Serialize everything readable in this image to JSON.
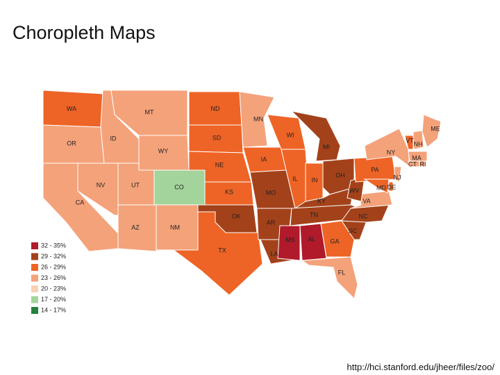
{
  "title": "Choropleth Maps",
  "legend": [
    {
      "label": "32 - 35%",
      "color": "#b01a2a"
    },
    {
      "label": "29 - 32%",
      "color": "#a3421a"
    },
    {
      "label": "26 - 29%",
      "color": "#ee6426"
    },
    {
      "label": "23 - 26%",
      "color": "#f4a27a"
    },
    {
      "label": "20 - 23%",
      "color": "#f9d2b4"
    },
    {
      "label": "17 - 20%",
      "color": "#a3d49b"
    },
    {
      "label": "14 - 17%",
      "color": "#23813f"
    }
  ],
  "states": [
    {
      "label": "WA",
      "bin": 2
    },
    {
      "label": "OR",
      "bin": 3
    },
    {
      "label": "CA",
      "bin": 3
    },
    {
      "label": "NV",
      "bin": 3
    },
    {
      "label": "ID",
      "bin": 3
    },
    {
      "label": "MT",
      "bin": 3
    },
    {
      "label": "WY",
      "bin": 3
    },
    {
      "label": "UT",
      "bin": 3
    },
    {
      "label": "CO",
      "bin": 5
    },
    {
      "label": "AZ",
      "bin": 3
    },
    {
      "label": "NM",
      "bin": 3
    },
    {
      "label": "ND",
      "bin": 2
    },
    {
      "label": "SD",
      "bin": 2
    },
    {
      "label": "NE",
      "bin": 2
    },
    {
      "label": "KS",
      "bin": 2
    },
    {
      "label": "OK",
      "bin": 1
    },
    {
      "label": "TX",
      "bin": 2
    },
    {
      "label": "MN",
      "bin": 3
    },
    {
      "label": "IA",
      "bin": 2
    },
    {
      "label": "MO",
      "bin": 1
    },
    {
      "label": "AR",
      "bin": 1
    },
    {
      "label": "LA",
      "bin": 1
    },
    {
      "label": "WI",
      "bin": 2
    },
    {
      "label": "IL",
      "bin": 2
    },
    {
      "label": "MI",
      "bin": 1
    },
    {
      "label": "IN",
      "bin": 2
    },
    {
      "label": "OH",
      "bin": 1
    },
    {
      "label": "KY",
      "bin": 1
    },
    {
      "label": "TN",
      "bin": 1
    },
    {
      "label": "MS",
      "bin": 0
    },
    {
      "label": "AL",
      "bin": 0
    },
    {
      "label": "GA",
      "bin": 2
    },
    {
      "label": "FL",
      "bin": 3
    },
    {
      "label": "SC",
      "bin": 1
    },
    {
      "label": "NC",
      "bin": 1
    },
    {
      "label": "VA",
      "bin": 3
    },
    {
      "label": "WV",
      "bin": 1
    },
    {
      "label": "PA",
      "bin": 2
    },
    {
      "label": "NY",
      "bin": 3
    },
    {
      "label": "ME",
      "bin": 3
    },
    {
      "label": "VT",
      "bin": 2
    },
    {
      "label": "NH",
      "bin": 3
    },
    {
      "label": "MA",
      "bin": 3
    },
    {
      "label": "CT",
      "bin": 3
    },
    {
      "label": "RI",
      "bin": 3
    },
    {
      "label": "NJ",
      "bin": 3
    },
    {
      "label": "DE",
      "bin": 2
    },
    {
      "label": "MD",
      "bin": 2
    }
  ],
  "footer": "http://hci.stanford.edu/jheer/files/zoo/"
}
